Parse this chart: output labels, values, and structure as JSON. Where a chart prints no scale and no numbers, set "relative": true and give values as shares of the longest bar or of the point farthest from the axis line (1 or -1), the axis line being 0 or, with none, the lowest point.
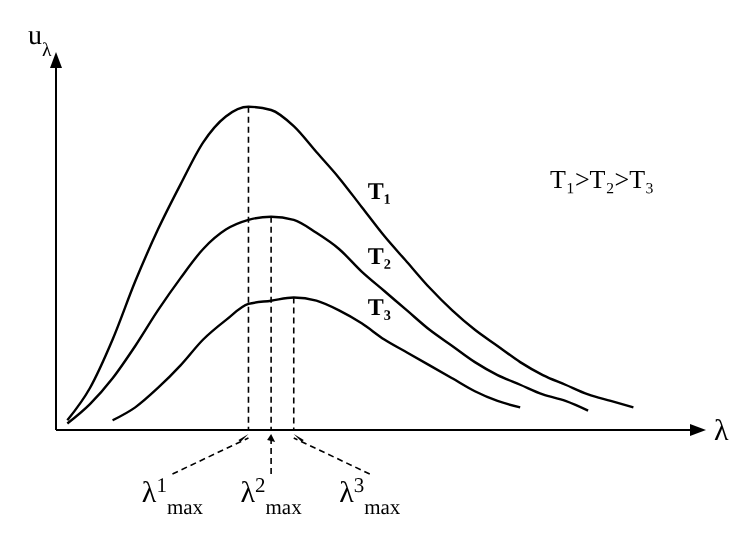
{
  "chart_data": {
    "type": "line",
    "relative": true,
    "xlabel": "λ",
    "ylabel": "u$_{λ}$",
    "categories": [
      null,
      null,
      null,
      null,
      null,
      null,
      null,
      null,
      null,
      null,
      null,
      null,
      null,
      null,
      null,
      null,
      null,
      null,
      null,
      null,
      null,
      null,
      null,
      null,
      null,
      null
    ],
    "series": [
      {
        "name": "T₁",
        "color": "#000000",
        "values": [
          0.03,
          0.13,
          0.28,
          0.46,
          0.62,
          0.76,
          0.89,
          0.97,
          1,
          0.99,
          0.94,
          0.86,
          0.78,
          0.69,
          0.6,
          0.52,
          0.44,
          0.37,
          0.31,
          0.26,
          0.21,
          0.17,
          0.14,
          0.11,
          0.09,
          0.07
        ]
      },
      {
        "name": "T₂",
        "color": "#000000",
        "values": [
          0.02,
          0.08,
          0.16,
          0.26,
          0.37,
          0.47,
          0.56,
          0.62,
          0.65,
          0.66,
          0.65,
          0.61,
          0.56,
          0.49,
          0.43,
          0.37,
          0.31,
          0.26,
          0.21,
          0.17,
          0.14,
          0.11,
          0.09,
          0.06,
          null,
          null
        ]
      },
      {
        "name": "T₃",
        "color": "#000000",
        "values": [
          null,
          null,
          0.03,
          0.07,
          0.13,
          0.2,
          0.28,
          0.34,
          0.39,
          0.4,
          0.41,
          0.4,
          0.37,
          0.33,
          0.28,
          0.24,
          0.2,
          0.16,
          0.12,
          0.09,
          0.07,
          null,
          null,
          null,
          null,
          null
        ]
      }
    ],
    "annotations": [
      "λ$^{1}$$_{max}$",
      "λ$^{2}$$_{max}$",
      "λ$^{3}$$_{max}$",
      "T₁>T₂>T₃"
    ],
    "legend": false,
    "grid": false,
    "marker": "none",
    "line_style": "solid"
  }
}
